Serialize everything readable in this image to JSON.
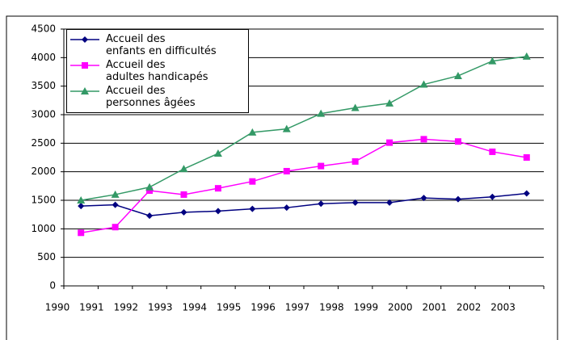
{
  "chart_data": {
    "type": "line",
    "categories": [
      "1990",
      "1991",
      "1992",
      "1993",
      "1994",
      "1995",
      "1996",
      "1997",
      "1998",
      "1999",
      "2000",
      "2001",
      "2002",
      "2003"
    ],
    "series": [
      {
        "name": "Accueil des\nenfants en difficultés",
        "color": "#000080",
        "marker": "diamond",
        "values": [
          1400,
          1420,
          1230,
          1290,
          1310,
          1350,
          1370,
          1440,
          1460,
          1460,
          1540,
          1520,
          1560,
          1620
        ]
      },
      {
        "name": "Accueil des\nadultes handicapés",
        "color": "#ff00ff",
        "marker": "square",
        "values": [
          930,
          1030,
          1670,
          1600,
          1710,
          1830,
          2010,
          2100,
          2180,
          2510,
          2570,
          2530,
          2350,
          2250
        ]
      },
      {
        "name": "Accueil des\npersonnes âgées",
        "color": "#339966",
        "marker": "triangle",
        "values": [
          1500,
          1600,
          1730,
          2050,
          2320,
          2690,
          2750,
          3020,
          3120,
          3200,
          3530,
          3680,
          3940,
          4020
        ]
      }
    ],
    "ylim": [
      0,
      4500
    ],
    "yticks": [
      0,
      500,
      1000,
      1500,
      2000,
      2500,
      3000,
      3500,
      4000,
      4500
    ],
    "grid": true,
    "legend": "top-left"
  }
}
